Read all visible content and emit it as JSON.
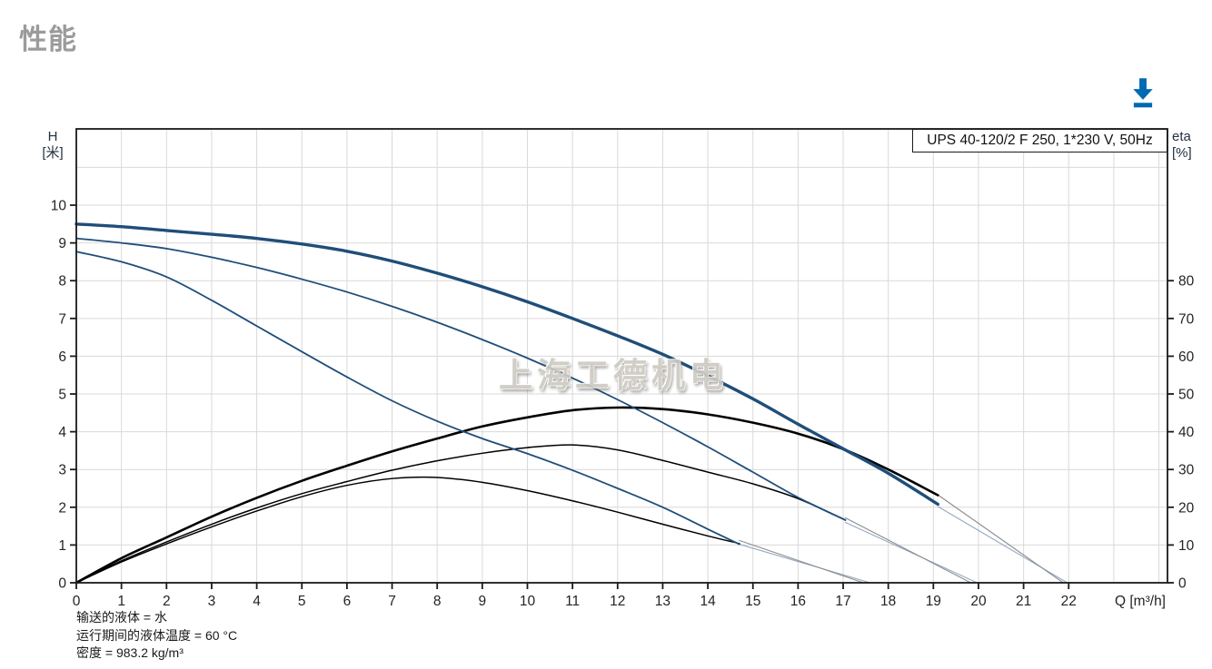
{
  "page": {
    "title": "性能"
  },
  "toolbar": {
    "download_tooltip": "download"
  },
  "chart_data": {
    "type": "line",
    "title_box": "UPS 40-120/2 F 250, 1*230 V, 50Hz",
    "watermark": "上海工德机电",
    "x_axis": {
      "label": "Q [m³/h]",
      "min": 0,
      "max": 24.19,
      "ticks": [
        0,
        1,
        2,
        3,
        4,
        5,
        6,
        7,
        8,
        9,
        10,
        11,
        12,
        13,
        14,
        15,
        16,
        17,
        18,
        19,
        20,
        21,
        22
      ]
    },
    "left_axis": {
      "label_line1": "H",
      "label_line2": "[米]",
      "min": 0,
      "max": 12.02,
      "ticks": [
        0,
        1,
        2,
        3,
        4,
        5,
        6,
        7,
        8,
        9,
        10
      ]
    },
    "right_axis": {
      "label_line1": "eta",
      "label_line2": "[%]",
      "min": 0,
      "max": 120.2,
      "ticks": [
        0,
        10,
        20,
        30,
        40,
        50,
        60,
        70,
        80
      ]
    },
    "grid": {
      "show": true,
      "color": "#d9d9d9",
      "x_step": 1,
      "y_step": 1
    },
    "colors": {
      "head": "#1f4e79",
      "efficiency": "#000000",
      "runout_head": "#93a9c4",
      "runout_eta": "#8c8c8c"
    },
    "series": [
      {
        "name": "runout-head-speed-1",
        "axis": "left",
        "color": "#93a9c4",
        "width": 1.1,
        "points": [
          [
            14.7,
            1.02
          ],
          [
            17.6,
            0
          ]
        ]
      },
      {
        "name": "runout-eta-speed-1",
        "axis": "right",
        "color": "#8c8c8c",
        "width": 1.1,
        "points": [
          [
            14.7,
            11.2
          ],
          [
            17.45,
            0
          ]
        ]
      },
      {
        "name": "runout-head-speed-2",
        "axis": "left",
        "color": "#93a9c4",
        "width": 1.1,
        "points": [
          [
            17.05,
            1.6
          ],
          [
            19.97,
            0
          ]
        ]
      },
      {
        "name": "runout-eta-speed-2",
        "axis": "right",
        "color": "#8c8c8c",
        "width": 1.1,
        "points": [
          [
            17.05,
            17.2
          ],
          [
            19.83,
            0
          ]
        ]
      },
      {
        "name": "runout-head-speed-3",
        "axis": "left",
        "color": "#93a9c4",
        "width": 1.1,
        "points": [
          [
            19.1,
            2.02
          ],
          [
            21.97,
            0
          ]
        ]
      },
      {
        "name": "runout-eta-speed-3",
        "axis": "right",
        "color": "#8c8c8c",
        "width": 1.1,
        "points": [
          [
            19.11,
            23.2
          ],
          [
            21.88,
            0
          ]
        ]
      },
      {
        "name": "efficiency-curve-speed-1",
        "axis": "right",
        "color": "#000000",
        "width": 1.5,
        "points": [
          [
            0,
            0
          ],
          [
            1,
            5.5
          ],
          [
            2,
            10.3
          ],
          [
            3,
            14.8
          ],
          [
            4,
            19.0
          ],
          [
            5,
            22.8
          ],
          [
            6,
            25.8
          ],
          [
            7,
            27.6
          ],
          [
            8,
            27.9
          ],
          [
            9,
            26.6
          ],
          [
            10,
            24.4
          ],
          [
            11,
            21.7
          ],
          [
            12,
            18.7
          ],
          [
            13,
            15.5
          ],
          [
            14,
            12.4
          ],
          [
            14.7,
            10.4
          ]
        ]
      },
      {
        "name": "efficiency-curve-speed-2",
        "axis": "right",
        "color": "#000000",
        "width": 1.5,
        "points": [
          [
            0,
            0
          ],
          [
            1,
            5.8
          ],
          [
            2,
            10.8
          ],
          [
            3,
            15.5
          ],
          [
            4,
            19.8
          ],
          [
            5,
            23.6
          ],
          [
            6,
            26.8
          ],
          [
            7,
            29.8
          ],
          [
            8,
            32.3
          ],
          [
            9,
            34.3
          ],
          [
            10,
            35.8
          ],
          [
            11,
            36.5
          ],
          [
            12,
            35.2
          ],
          [
            13,
            32.4
          ],
          [
            14,
            29.3
          ],
          [
            15,
            26.2
          ],
          [
            16,
            22.3
          ],
          [
            17.05,
            16.6
          ]
        ]
      },
      {
        "name": "efficiency-curve-speed-3",
        "axis": "right",
        "color": "#000000",
        "width": 2.6,
        "points": [
          [
            0,
            0
          ],
          [
            1,
            6.5
          ],
          [
            2,
            12.0
          ],
          [
            3,
            17.5
          ],
          [
            4,
            22.5
          ],
          [
            5,
            27.0
          ],
          [
            6,
            31.0
          ],
          [
            7,
            34.8
          ],
          [
            8,
            38.2
          ],
          [
            9,
            41.4
          ],
          [
            10,
            43.8
          ],
          [
            11,
            45.7
          ],
          [
            12,
            46.4
          ],
          [
            13,
            46.0
          ],
          [
            14,
            44.6
          ],
          [
            15,
            42.4
          ],
          [
            16,
            39.5
          ],
          [
            17,
            35.4
          ],
          [
            18,
            30.0
          ],
          [
            19.1,
            23.2
          ]
        ]
      },
      {
        "name": "head-curve-speed-1",
        "axis": "left",
        "color": "#1f4e79",
        "width": 1.8,
        "points": [
          [
            0,
            8.77
          ],
          [
            1,
            8.5
          ],
          [
            2,
            8.1
          ],
          [
            3,
            7.48
          ],
          [
            4,
            6.8
          ],
          [
            5,
            6.12
          ],
          [
            6,
            5.45
          ],
          [
            7,
            4.82
          ],
          [
            8,
            4.28
          ],
          [
            9,
            3.82
          ],
          [
            10,
            3.42
          ],
          [
            11,
            2.98
          ],
          [
            12,
            2.5
          ],
          [
            13,
            2.0
          ],
          [
            14,
            1.42
          ],
          [
            14.7,
            1.02
          ]
        ]
      },
      {
        "name": "head-curve-speed-2",
        "axis": "left",
        "color": "#1f4e79",
        "width": 1.8,
        "points": [
          [
            0,
            9.12
          ],
          [
            1,
            9.0
          ],
          [
            2,
            8.85
          ],
          [
            3,
            8.62
          ],
          [
            4,
            8.35
          ],
          [
            5,
            8.04
          ],
          [
            6,
            7.7
          ],
          [
            7,
            7.32
          ],
          [
            8,
            6.9
          ],
          [
            9,
            6.44
          ],
          [
            10,
            5.95
          ],
          [
            11,
            5.42
          ],
          [
            12,
            4.85
          ],
          [
            13,
            4.24
          ],
          [
            14,
            3.6
          ],
          [
            15,
            2.93
          ],
          [
            16,
            2.26
          ],
          [
            17.05,
            1.66
          ]
        ]
      },
      {
        "name": "head-curve-speed-3",
        "axis": "left",
        "color": "#1f4e79",
        "width": 3.4,
        "points": [
          [
            0,
            9.5
          ],
          [
            1,
            9.43
          ],
          [
            2,
            9.33
          ],
          [
            3,
            9.23
          ],
          [
            4,
            9.12
          ],
          [
            5,
            8.97
          ],
          [
            6,
            8.78
          ],
          [
            7,
            8.52
          ],
          [
            8,
            8.2
          ],
          [
            9,
            7.84
          ],
          [
            10,
            7.44
          ],
          [
            11,
            7.0
          ],
          [
            12,
            6.54
          ],
          [
            13,
            6.05
          ],
          [
            14,
            5.48
          ],
          [
            15,
            4.87
          ],
          [
            16,
            4.2
          ],
          [
            17,
            3.55
          ],
          [
            18,
            2.9
          ],
          [
            19.1,
            2.08
          ]
        ]
      }
    ]
  },
  "footer": {
    "lines": [
      "输送的液体 = 水",
      "运行期间的液体温度 = 60 °C",
      "密度 = 983.2 kg/m³"
    ]
  }
}
